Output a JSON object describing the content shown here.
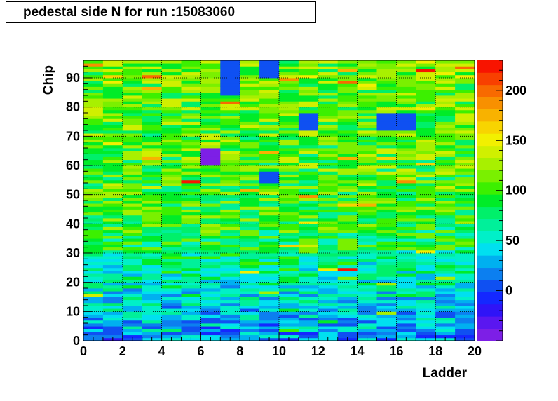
{
  "title": "pedestal side N for run :15083060",
  "chart_data": {
    "type": "heatmap",
    "title": "pedestal side N for run :15083060",
    "xlabel": "Ladder",
    "ylabel": "Chip",
    "xlim": [
      0,
      20
    ],
    "ylim": [
      0,
      96
    ],
    "x_ticks": [
      0,
      2,
      4,
      6,
      8,
      10,
      12,
      14,
      16,
      18,
      20
    ],
    "y_ticks": [
      0,
      10,
      20,
      30,
      40,
      50,
      60,
      70,
      80,
      90
    ],
    "color_scale": {
      "min": -50,
      "max": 230,
      "ticks": [
        0,
        50,
        100,
        150,
        200
      ]
    },
    "grid": true,
    "notes": "Values increase with chip number: mostly blue (0-40) at low chips, green (80-130) at middle and high chips. Uniform blue blocks at ladder 8 chips 84-96, ladder 10 chips 90-96, ladder 10 chips 54-58, ladder 12 chips 72-78, ladders 16-17 chips 72-78; purple block ladder 7 chips 60-66; red cells at ladder 14 chip 24 and ladder 18 chip 92."
  }
}
